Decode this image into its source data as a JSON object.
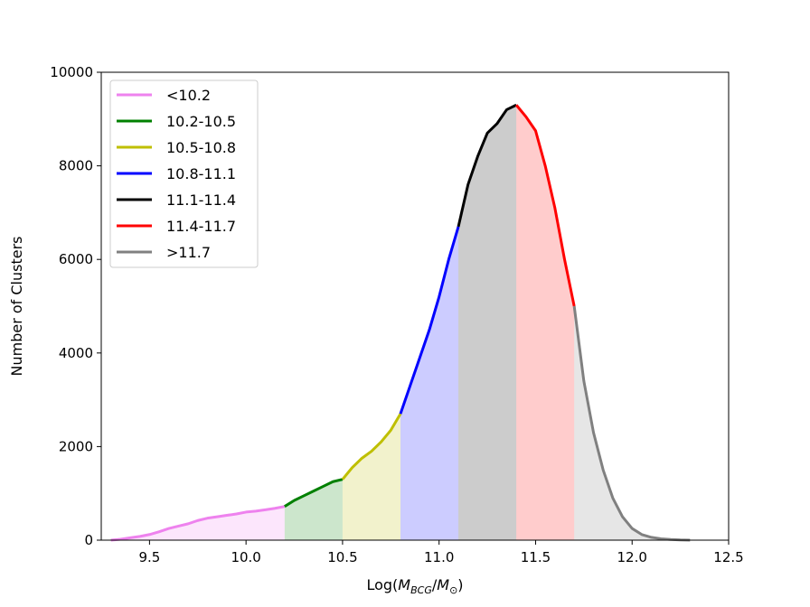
{
  "chart_data": {
    "type": "area",
    "title": "",
    "xlabel": "Log(M_BCG/M_⊙)",
    "xlabel_main": "Log(",
    "xlabel_m1": "M",
    "xlabel_sub1": "BCG",
    "xlabel_slash": "/",
    "xlabel_m2": "M",
    "xlabel_sub2": "⊙",
    "xlabel_end": ")",
    "ylabel": "Number of Clusters",
    "xlim": [
      9.25,
      12.5
    ],
    "ylim": [
      0,
      10000
    ],
    "xticks": [
      9.5,
      10.0,
      10.5,
      11.0,
      11.5,
      12.0,
      12.5
    ],
    "xtick_labels": [
      "9.5",
      "10.0",
      "10.5",
      "11.0",
      "11.5",
      "12.0",
      "12.5"
    ],
    "yticks": [
      0,
      2000,
      4000,
      6000,
      8000,
      10000
    ],
    "ytick_labels": [
      "0",
      "2000",
      "4000",
      "6000",
      "8000",
      "10000"
    ],
    "legend_position": "top-left",
    "grid": false,
    "series": [
      {
        "name": "<10.2",
        "color": "#ee82ee",
        "range": [
          9.3,
          10.2
        ],
        "x": [
          9.3,
          9.35,
          9.4,
          9.45,
          9.5,
          9.55,
          9.6,
          9.65,
          9.7,
          9.75,
          9.8,
          9.85,
          9.9,
          9.95,
          10.0,
          10.05,
          10.1,
          10.15,
          10.2
        ],
        "y": [
          0,
          20,
          50,
          80,
          120,
          180,
          250,
          300,
          350,
          420,
          470,
          500,
          530,
          560,
          600,
          620,
          650,
          680,
          720
        ]
      },
      {
        "name": "10.2-10.5",
        "color": "#008000",
        "range": [
          10.2,
          10.5
        ],
        "x": [
          10.2,
          10.25,
          10.3,
          10.35,
          10.4,
          10.45,
          10.5
        ],
        "y": [
          720,
          850,
          950,
          1050,
          1150,
          1250,
          1300
        ]
      },
      {
        "name": "10.5-10.8",
        "color": "#bfbf00",
        "range": [
          10.5,
          10.8
        ],
        "x": [
          10.5,
          10.55,
          10.6,
          10.65,
          10.7,
          10.75,
          10.8
        ],
        "y": [
          1300,
          1550,
          1750,
          1900,
          2100,
          2350,
          2700
        ]
      },
      {
        "name": "10.8-11.1",
        "color": "#0000ff",
        "range": [
          10.8,
          11.1
        ],
        "x": [
          10.8,
          10.85,
          10.9,
          10.95,
          11.0,
          11.05,
          11.1
        ],
        "y": [
          2700,
          3300,
          3900,
          4500,
          5200,
          6000,
          6700
        ]
      },
      {
        "name": "11.1-11.4",
        "color": "#000000",
        "range": [
          11.1,
          11.4
        ],
        "x": [
          11.1,
          11.15,
          11.2,
          11.25,
          11.3,
          11.35,
          11.4
        ],
        "y": [
          6700,
          7600,
          8200,
          8700,
          8900,
          9200,
          9300
        ]
      },
      {
        "name": "11.4-11.7",
        "color": "#ff0000",
        "range": [
          11.4,
          11.7
        ],
        "x": [
          11.4,
          11.45,
          11.5,
          11.55,
          11.6,
          11.65,
          11.7
        ],
        "y": [
          9300,
          9050,
          8750,
          8000,
          7100,
          6000,
          5000
        ]
      },
      {
        "name": ">11.7",
        "color": "#808080",
        "range": [
          11.7,
          12.3
        ],
        "x": [
          11.7,
          11.75,
          11.8,
          11.85,
          11.9,
          11.95,
          12.0,
          12.05,
          12.1,
          12.15,
          12.2,
          12.25,
          12.3
        ],
        "y": [
          5000,
          3400,
          2300,
          1500,
          900,
          500,
          250,
          120,
          60,
          30,
          15,
          5,
          0
        ]
      }
    ]
  }
}
